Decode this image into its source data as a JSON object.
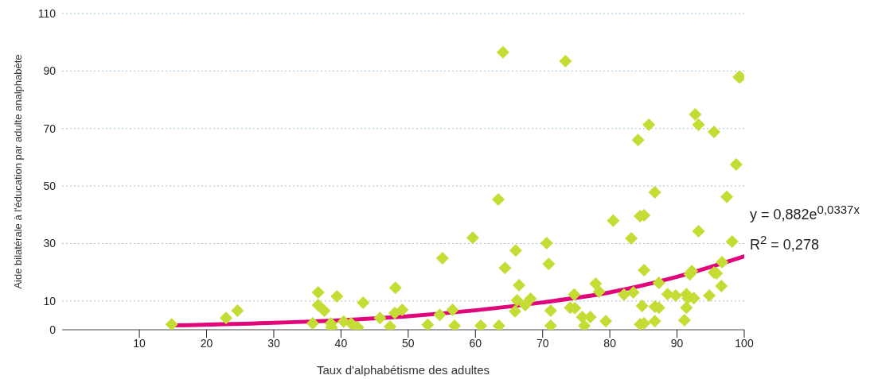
{
  "chart_data": {
    "type": "scatter",
    "xlabel": "Taux d'alphabétisme des adultes",
    "ylabel": "Aide bilatérale à l'éducation par adulte analphabète",
    "xlim": [
      -1.5,
      100
    ],
    "xticks": [
      10,
      20,
      30,
      40,
      50,
      60,
      70,
      80,
      90,
      100
    ],
    "ylim": [
      0,
      110
    ],
    "yticks": [
      0,
      10,
      30,
      50,
      70,
      90,
      110
    ],
    "grid": "y",
    "legend": false,
    "marker": "diamond",
    "annotations": [
      "y = 0,882e$^{0,0337x}$",
      "R$^{2}$ = 0,278"
    ],
    "series": [
      {
        "color": "#c4dc34",
        "x": [
          14.8,
          22.9,
          24.6,
          35.8,
          36.6,
          36.6,
          37.5,
          38.5,
          39.4,
          38.6,
          40.4,
          41.5,
          42.5,
          43.3,
          45.8,
          47.3,
          48,
          48.1,
          49.1,
          52.9,
          54.7,
          55.1,
          56.6,
          56.9,
          59.6,
          60.8,
          63.5,
          63.4,
          64.1,
          64.4,
          66,
          66.5,
          66.2,
          65.9,
          67.4,
          68.2,
          70.6,
          70.9,
          71.2,
          71.2,
          73.4,
          74.1,
          74.7,
          74.8,
          75.9,
          76.2,
          77.1,
          77.9,
          78.4,
          79.4,
          80.5,
          82.1,
          83.2,
          83.5,
          84.2,
          84.5,
          85.1,
          85.1,
          84.8,
          84.5,
          85.1,
          85.8,
          86.7,
          86.7,
          86.7,
          87.3,
          87.3,
          88.6,
          89.8,
          91.1,
          91.4,
          91.4,
          91.6,
          91.9,
          92.2,
          92.5,
          92.7,
          93.2,
          93.2,
          94.8,
          95.5,
          95.5,
          95.9,
          96.6,
          96.7,
          97.4,
          98.2,
          98.8,
          99.2,
          99.4
        ],
        "values": [
          1.9,
          4.1,
          6.6,
          2.2,
          13,
          8.6,
          6.6,
          2.2,
          11.6,
          0.8,
          2.8,
          2.2,
          0.8,
          9.4,
          4.1,
          1.1,
          5.8,
          14.6,
          6.9,
          1.7,
          5.2,
          24.9,
          6.9,
          1.4,
          32,
          1.4,
          1.4,
          45.3,
          96.5,
          21.5,
          27.6,
          15.5,
          10.2,
          6.4,
          8.6,
          10.8,
          30.1,
          22.9,
          6.6,
          1.4,
          93.4,
          7.7,
          12.2,
          7.5,
          4.4,
          1.4,
          4.4,
          16,
          13.3,
          3,
          37.9,
          12.2,
          31.8,
          13,
          66,
          39.5,
          39.8,
          20.7,
          8.3,
          1.9,
          2.2,
          71.3,
          47.8,
          8,
          3,
          7.7,
          16.3,
          12.4,
          11.9,
          3.3,
          12.4,
          7.7,
          11,
          19.3,
          20.4,
          11,
          74.9,
          71.3,
          34.3,
          11.9,
          68.8,
          19.9,
          19.6,
          15.2,
          23.5,
          46.2,
          30.7,
          57.5,
          87.9,
          87.9
        ]
      },
      {
        "type": "line",
        "color": "#e0067a",
        "marker": "none",
        "x": [
          14.8,
          30,
          50,
          70,
          80,
          90,
          100
        ],
        "values": [
          1.5,
          2.4,
          4.7,
          9.5,
          13,
          18.4,
          25.5
        ]
      }
    ]
  }
}
